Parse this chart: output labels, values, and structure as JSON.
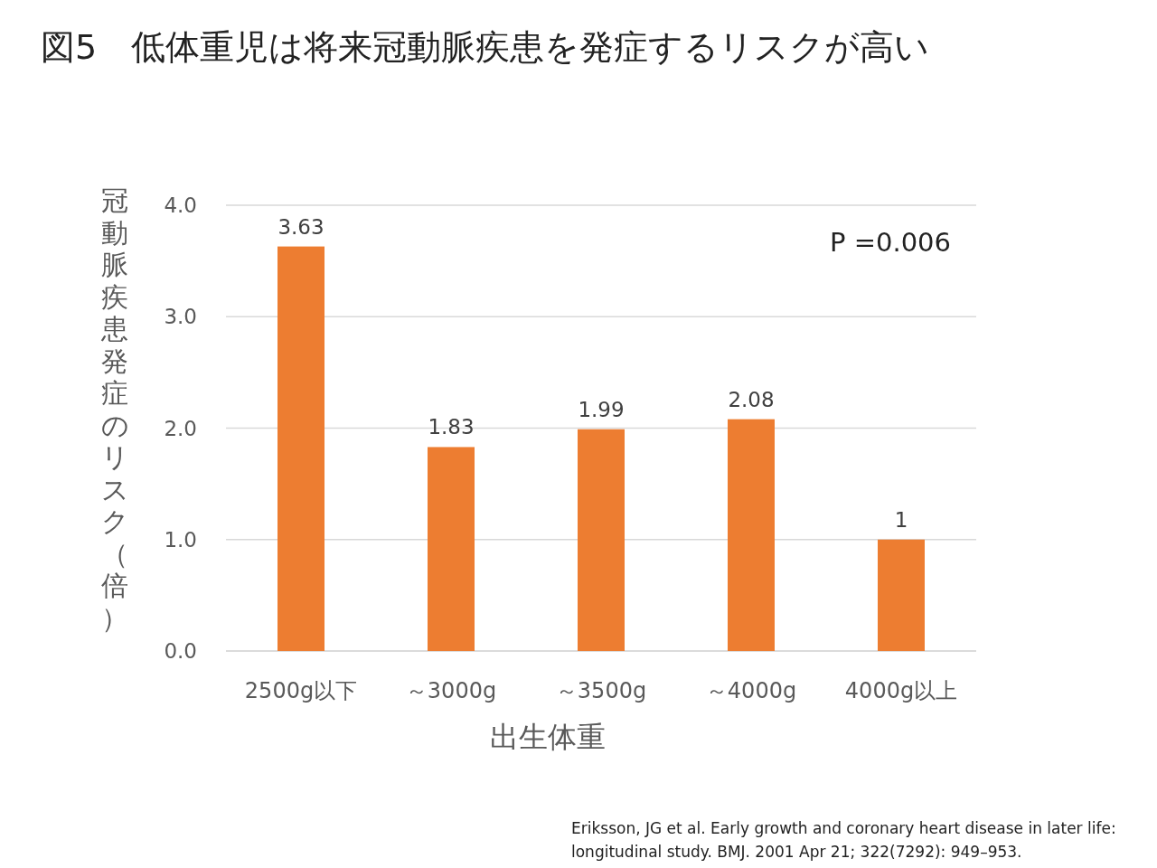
{
  "chart_data": {
    "type": "bar",
    "title": "図5　低体重児は将来冠動脈疾患を発症するリスクが高い",
    "xlabel": "出生体重",
    "ylabel": "冠動脈疾患発症のリスク（倍）",
    "categories": [
      "2500g以下",
      "～3000g",
      "～3500g",
      "～4000g",
      "4000g以上"
    ],
    "values": [
      3.63,
      1.83,
      1.99,
      2.08,
      1
    ],
    "value_labels": [
      "3.63",
      "1.83",
      "1.99",
      "2.08",
      "1"
    ],
    "color": "#ed7d31",
    "ylim": [
      0,
      4
    ],
    "yticks": [
      {
        "value": 0,
        "label": "0.0"
      },
      {
        "value": 1,
        "label": "1.0"
      },
      {
        "value": 2,
        "label": "2.0"
      },
      {
        "value": 3,
        "label": "3.0"
      },
      {
        "value": 4,
        "label": "4.0"
      }
    ],
    "grid": "y",
    "annotations": [
      "P =0.006",
      "Eriksson, JG et al. Early growth and coronary heart disease in later life:",
      "longitudinal study. BMJ. 2001 Apr 21; 322(7292): 949–953."
    ]
  }
}
